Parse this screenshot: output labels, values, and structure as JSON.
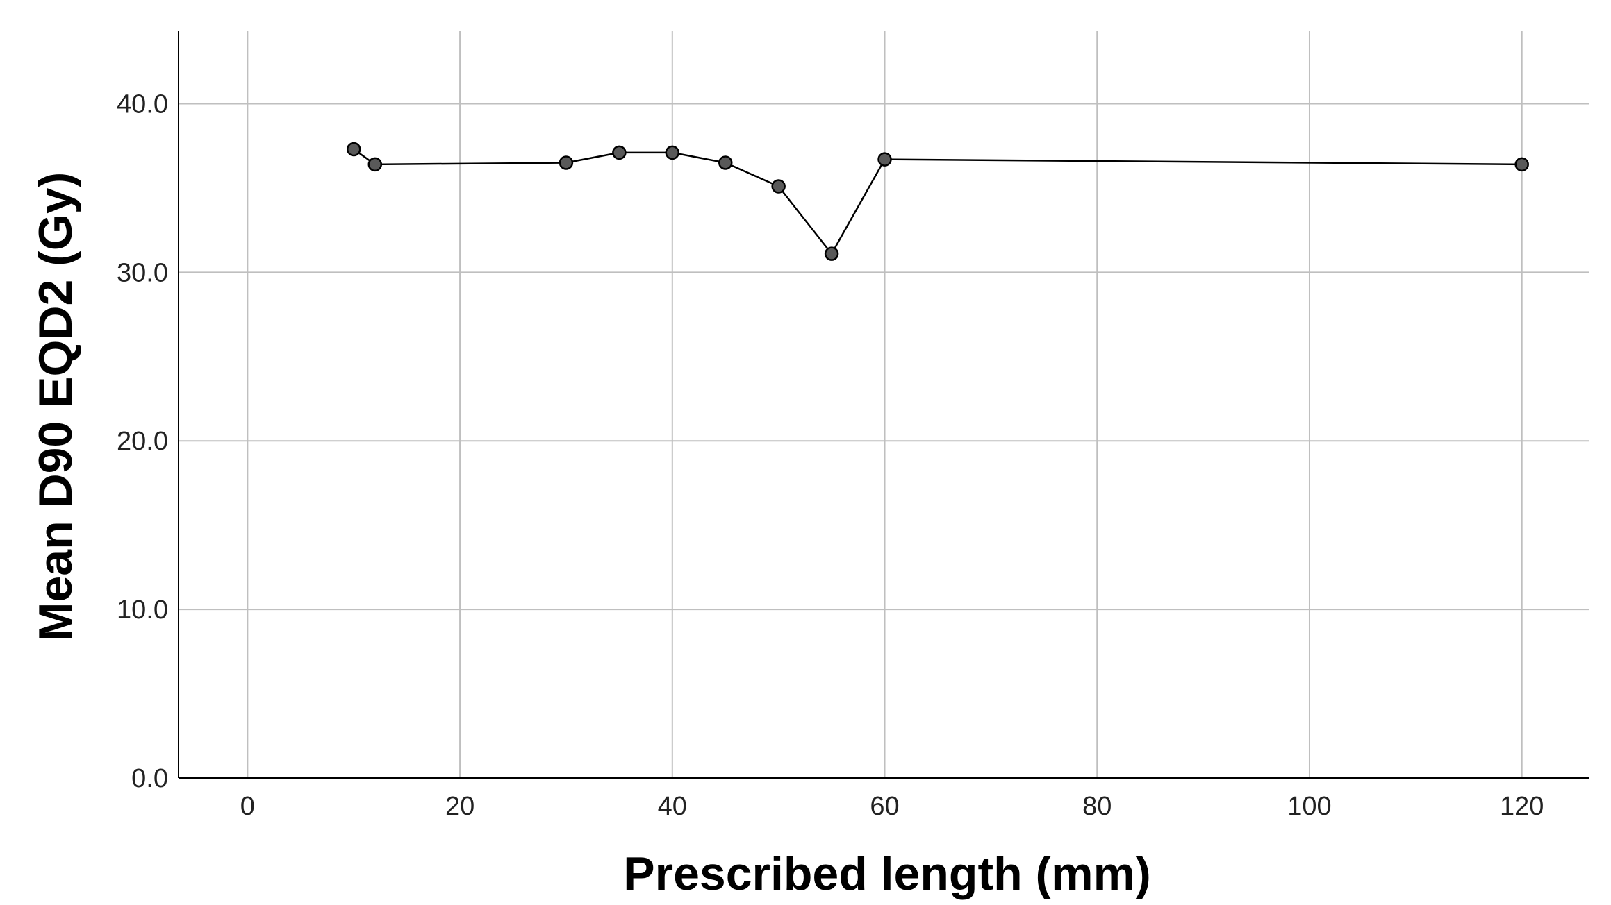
{
  "chart_data": {
    "type": "line",
    "title": "",
    "xlabel": "Prescribed length (mm)",
    "ylabel": "Mean D90 EQD2 (Gy)",
    "xlim": [
      -6.5,
      126.3
    ],
    "ylim": [
      0,
      44.3
    ],
    "x_ticks": [
      0,
      20,
      40,
      60,
      80,
      100,
      120
    ],
    "x_tick_labels": [
      "0",
      "20",
      "40",
      "60",
      "80",
      "100",
      "120"
    ],
    "y_ticks": [
      0,
      10,
      20,
      30,
      40
    ],
    "y_tick_labels": [
      "0.0",
      "10.0",
      "20.0",
      "30.0",
      "40.0"
    ],
    "grid": true,
    "series": [
      {
        "x": [
          10,
          12,
          30,
          35,
          40,
          45,
          50,
          55,
          60,
          120
        ],
        "y": [
          37.3,
          36.4,
          36.5,
          37.1,
          37.1,
          36.5,
          35.1,
          31.1,
          36.7,
          36.4
        ]
      }
    ],
    "colors": {
      "line": "#000000",
      "marker_fill": "#595959",
      "marker_stroke": "#000000",
      "grid": "#bfbfbf",
      "axis": "#000000"
    }
  }
}
